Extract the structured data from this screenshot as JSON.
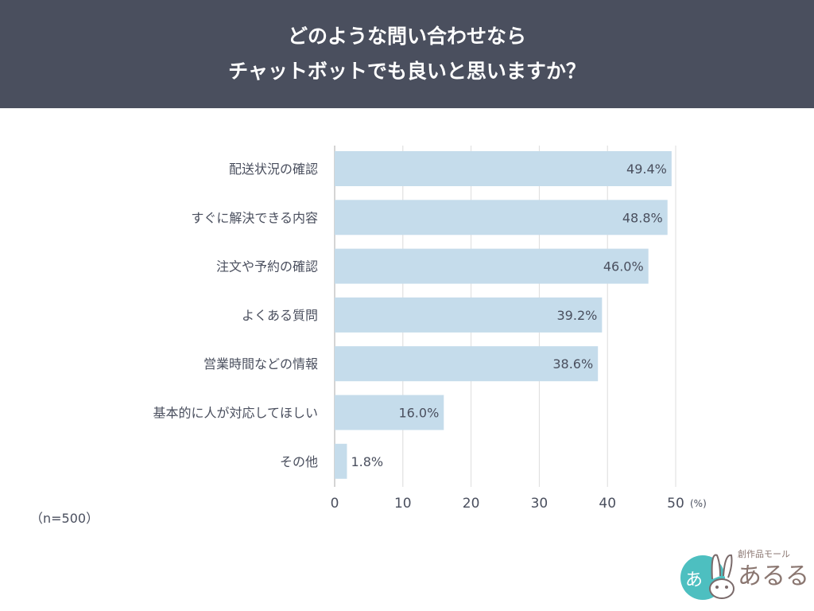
{
  "header": {
    "title_line1": "どのような問い合わせなら",
    "title_line2": "チャットボットでも良いと思いますか？"
  },
  "sample_note": "（n=500）",
  "colors": {
    "header_bg": "#4a4f5e",
    "bar": "#c5dceb",
    "text": "#4a4f5e",
    "grid": "#dcdcdc"
  },
  "chart_data": {
    "type": "bar",
    "orientation": "horizontal",
    "categories": [
      "配送状況の確認",
      "すぐに解決できる内容",
      "注文や予約の確認",
      "よくある質問",
      "営業時間などの情報",
      "基本的に人が対応してほしい",
      "その他"
    ],
    "values": [
      49.4,
      48.8,
      46.0,
      39.2,
      38.6,
      16.0,
      1.8
    ],
    "data_labels": [
      "49.4%",
      "48.8%",
      "46.0%",
      "39.2%",
      "38.6%",
      "16.0%",
      "1.8%"
    ],
    "xlim": [
      0,
      50
    ],
    "xticks": [
      "0",
      "10",
      "20",
      "30",
      "40",
      "50"
    ],
    "xunit": "(%)",
    "grid": true
  },
  "logo": {
    "tagline": "創作品モール",
    "name": "あるる",
    "mark": "あ"
  }
}
